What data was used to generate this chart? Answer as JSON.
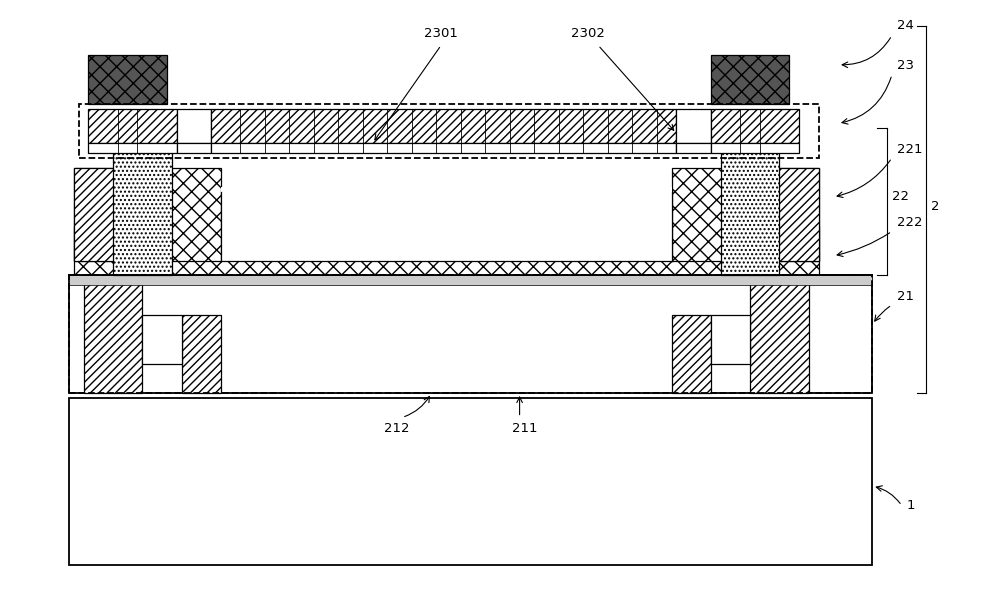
{
  "fig_width": 10.0,
  "fig_height": 5.9,
  "dpi": 100,
  "bg": "#ffffff",
  "lc": "#000000",
  "gray_dark": "#555555",
  "gray_dot": "#aaaaaa",
  "lw_main": 1.3,
  "lw_med": 0.9,
  "lw_thin": 0.6,
  "fs": 9.5,
  "labels": [
    "2301",
    "2302",
    "24",
    "23",
    "221",
    "22",
    "222",
    "21",
    "212",
    "211",
    "2",
    "1"
  ]
}
